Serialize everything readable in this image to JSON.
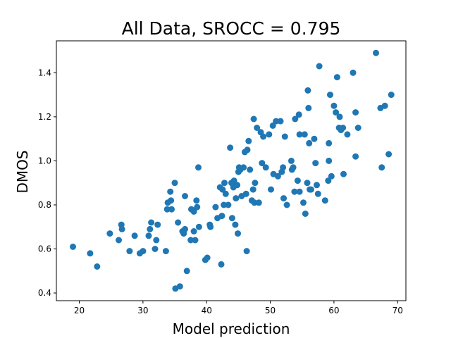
{
  "chart_data": {
    "type": "scatter",
    "title": "All Data, SROCC = 0.795",
    "xlabel": "Model prediction",
    "ylabel": "DMOS",
    "xlim": [
      16.4,
      71.3
    ],
    "ylim": [
      0.365,
      1.545
    ],
    "xticks": [
      "20",
      "30",
      "40",
      "50",
      "60",
      "70"
    ],
    "yticks": [
      "0.4",
      "0.6",
      "0.8",
      "1.0",
      "1.2",
      "1.4"
    ],
    "grid": false,
    "marker_color": "#1f77b4",
    "points": [
      [
        19.0,
        0.61
      ],
      [
        21.7,
        0.58
      ],
      [
        22.8,
        0.52
      ],
      [
        24.8,
        0.67
      ],
      [
        26.2,
        0.64
      ],
      [
        26.6,
        0.71
      ],
      [
        26.7,
        0.69
      ],
      [
        27.9,
        0.59
      ],
      [
        28.7,
        0.66
      ],
      [
        29.5,
        0.58
      ],
      [
        30.0,
        0.59
      ],
      [
        30.9,
        0.66
      ],
      [
        31.1,
        0.69
      ],
      [
        31.3,
        0.72
      ],
      [
        31.9,
        0.6
      ],
      [
        32.1,
        0.64
      ],
      [
        32.3,
        0.71
      ],
      [
        33.6,
        0.59
      ],
      [
        33.8,
        0.78
      ],
      [
        33.9,
        0.81
      ],
      [
        34.3,
        0.86
      ],
      [
        34.4,
        0.82
      ],
      [
        34.5,
        0.78
      ],
      [
        35.0,
        0.9
      ],
      [
        35.1,
        0.42
      ],
      [
        35.5,
        0.72
      ],
      [
        35.8,
        0.43
      ],
      [
        36.2,
        0.68
      ],
      [
        36.4,
        0.67
      ],
      [
        36.6,
        0.69
      ],
      [
        36.6,
        0.84
      ],
      [
        36.9,
        0.5
      ],
      [
        37.5,
        0.64
      ],
      [
        37.6,
        0.78
      ],
      [
        38.0,
        0.68
      ],
      [
        38.0,
        0.77
      ],
      [
        38.2,
        0.64
      ],
      [
        38.4,
        0.82
      ],
      [
        38.5,
        0.79
      ],
      [
        38.7,
        0.97
      ],
      [
        38.8,
        0.7
      ],
      [
        39.8,
        0.55
      ],
      [
        40.1,
        0.56
      ],
      [
        40.5,
        0.71
      ],
      [
        40.6,
        0.7
      ],
      [
        41.4,
        0.79
      ],
      [
        41.7,
        0.74
      ],
      [
        42.1,
        0.88
      ],
      [
        42.3,
        0.53
      ],
      [
        42.4,
        0.75
      ],
      [
        42.5,
        0.87
      ],
      [
        42.7,
        0.8
      ],
      [
        42.8,
        0.9
      ],
      [
        43.0,
        0.85
      ],
      [
        43.4,
        0.8
      ],
      [
        43.7,
        1.06
      ],
      [
        43.9,
        0.9
      ],
      [
        44.0,
        0.74
      ],
      [
        44.2,
        0.88
      ],
      [
        44.3,
        0.91
      ],
      [
        44.5,
        0.71
      ],
      [
        44.6,
        0.83
      ],
      [
        44.8,
        0.89
      ],
      [
        44.9,
        0.67
      ],
      [
        45.0,
        0.95
      ],
      [
        45.1,
        0.97
      ],
      [
        45.3,
        0.96
      ],
      [
        45.5,
        0.84
      ],
      [
        45.8,
        0.97
      ],
      [
        46.0,
        1.04
      ],
      [
        46.2,
        0.85
      ],
      [
        46.3,
        0.59
      ],
      [
        46.4,
        1.05
      ],
      [
        46.6,
        1.09
      ],
      [
        46.8,
        0.96
      ],
      [
        47.1,
        0.82
      ],
      [
        47.3,
        0.87
      ],
      [
        47.4,
        1.19
      ],
      [
        47.5,
        0.81
      ],
      [
        47.6,
        0.9
      ],
      [
        47.9,
        1.15
      ],
      [
        48.2,
        0.81
      ],
      [
        48.5,
        1.13
      ],
      [
        48.7,
        0.99
      ],
      [
        48.9,
        1.11
      ],
      [
        49.3,
        0.97
      ],
      [
        49.8,
        1.12
      ],
      [
        50.1,
        0.87
      ],
      [
        50.4,
        1.16
      ],
      [
        50.5,
        0.94
      ],
      [
        50.9,
        1.18
      ],
      [
        51.2,
        0.93
      ],
      [
        51.6,
        1.18
      ],
      [
        51.8,
        0.95
      ],
      [
        52.0,
        0.97
      ],
      [
        52.1,
        0.83
      ],
      [
        52.3,
        1.11
      ],
      [
        52.6,
        0.8
      ],
      [
        53.3,
        1.0
      ],
      [
        53.4,
        0.96
      ],
      [
        53.6,
        0.97
      ],
      [
        53.8,
        0.86
      ],
      [
        53.9,
        1.19
      ],
      [
        54.3,
        0.91
      ],
      [
        54.5,
        1.21
      ],
      [
        54.6,
        1.12
      ],
      [
        54.6,
        0.86
      ],
      [
        55.2,
        0.81
      ],
      [
        55.4,
        1.12
      ],
      [
        55.5,
        0.76
      ],
      [
        55.8,
        0.9
      ],
      [
        55.9,
        1.32
      ],
      [
        56.0,
        1.24
      ],
      [
        56.1,
        1.08
      ],
      [
        56.2,
        0.87
      ],
      [
        56.4,
        0.87
      ],
      [
        56.9,
        1.1
      ],
      [
        57.1,
        0.99
      ],
      [
        57.3,
        0.89
      ],
      [
        57.5,
        0.85
      ],
      [
        57.7,
        1.43
      ],
      [
        58.6,
        0.82
      ],
      [
        59.1,
        0.91
      ],
      [
        59.2,
        1.08
      ],
      [
        59.2,
        1.0
      ],
      [
        59.4,
        1.3
      ],
      [
        59.6,
        0.93
      ],
      [
        60.0,
        1.25
      ],
      [
        60.3,
        1.22
      ],
      [
        60.5,
        1.38
      ],
      [
        60.8,
        1.15
      ],
      [
        60.9,
        1.2
      ],
      [
        61.1,
        1.14
      ],
      [
        61.4,
        1.15
      ],
      [
        61.5,
        0.94
      ],
      [
        62.1,
        1.12
      ],
      [
        63.0,
        1.4
      ],
      [
        63.4,
        1.22
      ],
      [
        63.4,
        1.02
      ],
      [
        63.8,
        1.15
      ],
      [
        66.6,
        1.49
      ],
      [
        67.3,
        1.24
      ],
      [
        67.5,
        0.97
      ],
      [
        68.0,
        1.25
      ],
      [
        68.6,
        1.03
      ],
      [
        69.0,
        1.3
      ]
    ]
  }
}
